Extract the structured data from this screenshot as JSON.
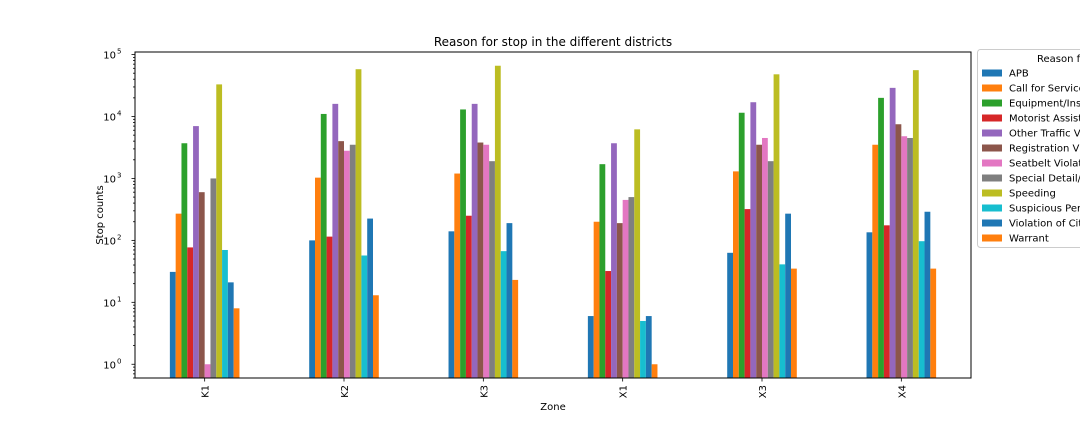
{
  "chart_data": {
    "type": "bar",
    "title": "Reason for stop in the different districts",
    "xlabel": "Zone",
    "ylabel": "Stop counts",
    "yscale": "log",
    "ylim": [
      0.6,
      110000
    ],
    "grid": false,
    "legend_position": "right (clipped)",
    "legend_title": "Reason f",
    "categories": [
      "K1",
      "K2",
      "K3",
      "X1",
      "X3",
      "X4"
    ],
    "yticks": [
      {
        "value": 1,
        "label": "10",
        "exp": "0"
      },
      {
        "value": 10,
        "label": "10",
        "exp": "1"
      },
      {
        "value": 100,
        "label": "10",
        "exp": "2"
      },
      {
        "value": 1000,
        "label": "10",
        "exp": "3"
      },
      {
        "value": 10000,
        "label": "10",
        "exp": "4"
      },
      {
        "value": 100000,
        "label": "10",
        "exp": "5"
      }
    ],
    "series": [
      {
        "name": "APB",
        "color": "#1f77b4",
        "values": [
          31,
          100,
          140,
          6,
          63,
          135
        ]
      },
      {
        "name": "Call for Service",
        "color": "#ff7f0e",
        "values": [
          270,
          1030,
          1200,
          200,
          1300,
          3500
        ]
      },
      {
        "name": "Equipment/Ins",
        "color": "#2ca02c",
        "values": [
          3700,
          11000,
          13000,
          1700,
          11500,
          20000
        ]
      },
      {
        "name": "Motorist Assist",
        "color": "#d62728",
        "values": [
          77,
          115,
          250,
          32,
          320,
          175
        ]
      },
      {
        "name": "Other Traffic V",
        "color": "#9467bd",
        "values": [
          7000,
          16000,
          16000,
          3700,
          17000,
          29000
        ]
      },
      {
        "name": "Registration V",
        "color": "#8c564b",
        "values": [
          600,
          4000,
          3800,
          190,
          3500,
          7500
        ]
      },
      {
        "name": "Seatbelt Violat",
        "color": "#e377c2",
        "values": [
          1,
          2800,
          3500,
          450,
          4500,
          4800
        ]
      },
      {
        "name": "Special Detail/",
        "color": "#7f7f7f",
        "values": [
          1000,
          3500,
          1900,
          500,
          1900,
          4500
        ]
      },
      {
        "name": "Speeding",
        "color": "#bcbd22",
        "values": [
          33000,
          58000,
          66000,
          6200,
          48000,
          56000
        ]
      },
      {
        "name": "Suspicious Per",
        "color": "#17becf",
        "values": [
          70,
          57,
          67,
          5,
          41,
          97
        ]
      },
      {
        "name": "Violation of Cit",
        "color": "#1f77b4",
        "values": [
          21,
          225,
          190,
          6,
          270,
          290
        ]
      },
      {
        "name": "Warrant",
        "color": "#ff7f0e",
        "values": [
          8,
          13,
          23,
          1,
          35,
          35
        ]
      }
    ]
  }
}
